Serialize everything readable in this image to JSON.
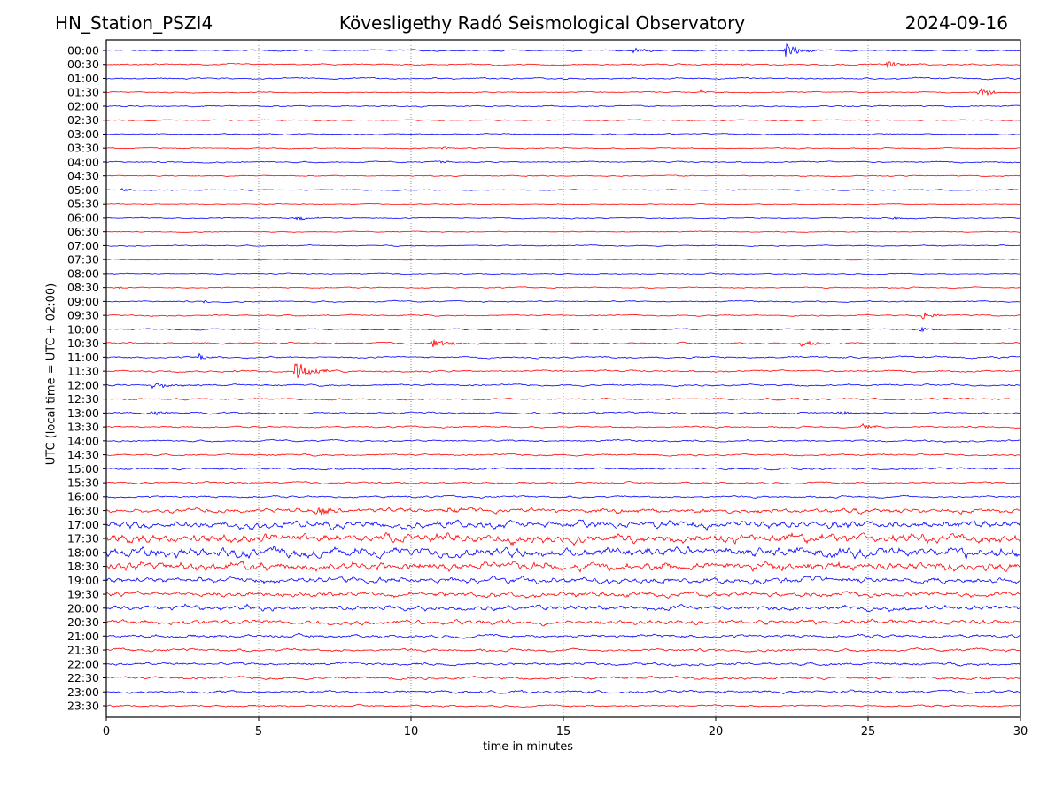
{
  "header": {
    "station": "HN_Station_PSZI4",
    "observatory": "Kövesligethy Radó Seismological Observatory",
    "date": "2024-09-16"
  },
  "chart_data": {
    "type": "line",
    "title": "Kövesligethy Radó Seismological Observatory",
    "xlabel": "time in minutes",
    "ylabel": "UTC (local time = UTC + 02:00)",
    "xlim": [
      0,
      30
    ],
    "xticks": [
      "0",
      "5",
      "10",
      "15",
      "20",
      "25",
      "30"
    ],
    "grid": "vertical dotted at each x tick",
    "colors": {
      "even": "#0000ff",
      "odd": "#ff0000"
    },
    "rows": [
      "00:00",
      "00:30",
      "01:00",
      "01:30",
      "02:00",
      "02:30",
      "03:00",
      "03:30",
      "04:00",
      "04:30",
      "05:00",
      "05:30",
      "06:00",
      "06:30",
      "07:00",
      "07:30",
      "08:00",
      "08:30",
      "09:00",
      "09:30",
      "10:00",
      "10:30",
      "11:00",
      "11:30",
      "12:00",
      "12:30",
      "13:00",
      "13:30",
      "14:00",
      "14:30",
      "15:00",
      "15:30",
      "16:00",
      "16:30",
      "17:00",
      "17:30",
      "18:00",
      "18:30",
      "19:00",
      "19:30",
      "20:00",
      "20:30",
      "21:00",
      "21:30",
      "22:00",
      "22:30",
      "23:00",
      "23:30"
    ],
    "noise_level": [
      0.6,
      0.6,
      0.7,
      0.5,
      0.6,
      0.5,
      0.5,
      0.5,
      0.6,
      0.5,
      0.5,
      0.4,
      0.5,
      0.4,
      0.5,
      0.4,
      0.5,
      0.5,
      0.6,
      0.6,
      0.6,
      0.7,
      0.8,
      0.8,
      0.8,
      0.8,
      0.8,
      0.7,
      0.8,
      0.8,
      0.9,
      0.8,
      0.9,
      1.6,
      2.6,
      3.2,
      3.4,
      3.0,
      2.0,
      1.8,
      1.8,
      1.6,
      1.4,
      1.2,
      1.2,
      1.2,
      1.2,
      0.8
    ],
    "events": [
      {
        "row": 0,
        "t": 17.3,
        "amp": 4,
        "dur": 0.6
      },
      {
        "row": 0,
        "t": 22.3,
        "amp": 10,
        "dur": 0.8
      },
      {
        "row": 1,
        "t": 20.8,
        "amp": 2,
        "dur": 0.4
      },
      {
        "row": 1,
        "t": 25.6,
        "amp": 6,
        "dur": 0.6
      },
      {
        "row": 3,
        "t": 19.5,
        "amp": 2.5,
        "dur": 0.3
      },
      {
        "row": 3,
        "t": 28.6,
        "amp": 6,
        "dur": 0.8
      },
      {
        "row": 7,
        "t": 11.0,
        "amp": 2.5,
        "dur": 0.4
      },
      {
        "row": 8,
        "t": 11.0,
        "amp": 2.5,
        "dur": 0.4
      },
      {
        "row": 10,
        "t": 0.5,
        "amp": 2,
        "dur": 0.6
      },
      {
        "row": 12,
        "t": 6.2,
        "amp": 3,
        "dur": 0.8
      },
      {
        "row": 12,
        "t": 25.8,
        "amp": 2,
        "dur": 0.8
      },
      {
        "row": 17,
        "t": 0.4,
        "amp": 2,
        "dur": 0.3
      },
      {
        "row": 18,
        "t": 3.2,
        "amp": 2.5,
        "dur": 0.3
      },
      {
        "row": 19,
        "t": 26.8,
        "amp": 5,
        "dur": 0.6
      },
      {
        "row": 20,
        "t": 26.7,
        "amp": 4,
        "dur": 0.6
      },
      {
        "row": 21,
        "t": 10.7,
        "amp": 5,
        "dur": 1.0
      },
      {
        "row": 21,
        "t": 22.8,
        "amp": 5,
        "dur": 0.7
      },
      {
        "row": 22,
        "t": 3.0,
        "amp": 4,
        "dur": 0.6
      },
      {
        "row": 23,
        "t": 6.2,
        "amp": 14,
        "dur": 0.9
      },
      {
        "row": 24,
        "t": 1.5,
        "amp": 4,
        "dur": 1.2
      },
      {
        "row": 26,
        "t": 1.5,
        "amp": 3.5,
        "dur": 0.8
      },
      {
        "row": 26,
        "t": 24.0,
        "amp": 3.5,
        "dur": 0.6
      },
      {
        "row": 27,
        "t": 24.8,
        "amp": 4,
        "dur": 0.7
      },
      {
        "row": 33,
        "t": 6.9,
        "amp": 9,
        "dur": 0.7
      },
      {
        "row": 33,
        "t": 11.2,
        "amp": 3,
        "dur": 1.0
      }
    ]
  }
}
